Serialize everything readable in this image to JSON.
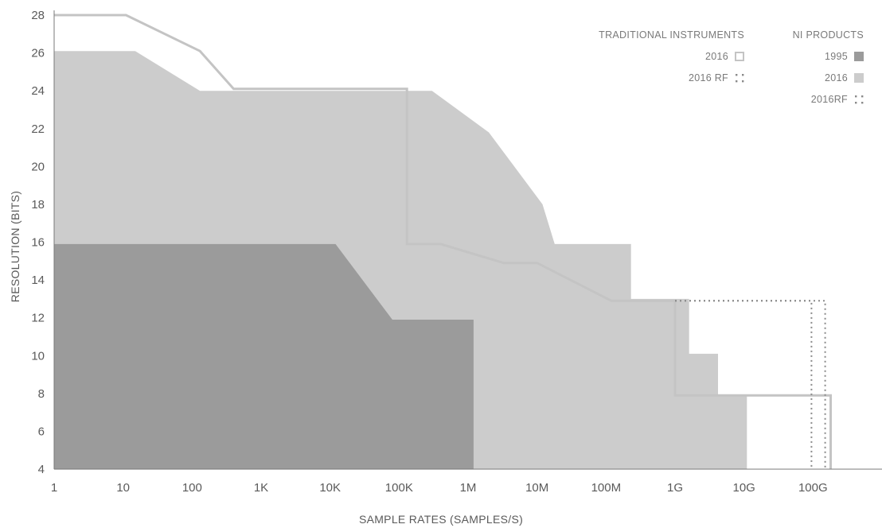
{
  "chart_data": {
    "type": "area",
    "xlabel": "SAMPLE RATES (SAMPLES/S)",
    "ylabel": "RESOLUTION (BITS)",
    "x_scale": "log10",
    "xlim": [
      1,
      1000000000000
    ],
    "ylim": [
      4,
      28
    ],
    "x_ticks": [
      {
        "value": 1,
        "label": "1"
      },
      {
        "value": 10,
        "label": "10"
      },
      {
        "value": 100,
        "label": "100"
      },
      {
        "value": 1000,
        "label": "1K"
      },
      {
        "value": 10000,
        "label": "10K"
      },
      {
        "value": 100000,
        "label": "100K"
      },
      {
        "value": 1000000,
        "label": "1M"
      },
      {
        "value": 10000000,
        "label": "10M"
      },
      {
        "value": 100000000,
        "label": "100M"
      },
      {
        "value": 1000000000,
        "label": "1G"
      },
      {
        "value": 10000000000,
        "label": "10G"
      },
      {
        "value": 100000000000,
        "label": "100G"
      }
    ],
    "y_ticks": [
      4,
      6,
      8,
      10,
      12,
      14,
      16,
      18,
      20,
      22,
      24,
      26,
      28
    ],
    "grid": false,
    "legend": {
      "placement": "top-right",
      "groups": [
        {
          "title": "TRADITIONAL INSTRUMENTS",
          "items": [
            {
              "label": "2016",
              "series": "trad_2016"
            },
            {
              "label": "2016 RF",
              "series": "trad_2016_rf"
            }
          ]
        },
        {
          "title": "NI PRODUCTS",
          "items": [
            {
              "label": "1995",
              "series": "ni_1995"
            },
            {
              "label": "2016",
              "series": "ni_2016"
            },
            {
              "label": "2016RF",
              "series": "ni_2016_rf"
            }
          ]
        }
      ]
    },
    "series": [
      {
        "id": "ni_2016",
        "style": "filled-area",
        "color": "#cccccc",
        "x": [
          1,
          15,
          130,
          300000,
          2000000,
          12000000,
          18000000,
          230000000,
          230000000,
          1600000000,
          1600000000,
          4200000000,
          4200000000,
          11000000000,
          11000000000
        ],
        "y": [
          26.1,
          26.1,
          24,
          24,
          21.8,
          18,
          15.9,
          15.9,
          13,
          13,
          10.1,
          10.1,
          7.9,
          7.9,
          4
        ]
      },
      {
        "id": "ni_1995",
        "style": "filled-area",
        "color": "#9b9b9b",
        "x": [
          1,
          12000,
          80000,
          1200000,
          1200000
        ],
        "y": [
          15.9,
          15.9,
          11.9,
          11.9,
          4
        ]
      },
      {
        "id": "trad_2016",
        "style": "outline",
        "color": "#c4c4c4",
        "x": [
          1,
          11,
          130,
          400,
          130000,
          130000,
          400000,
          3300000,
          10000000,
          120000000,
          1000000000,
          1000000000,
          180000000000,
          180000000000
        ],
        "y": [
          28,
          28,
          26.1,
          24.1,
          24.1,
          15.9,
          15.9,
          14.9,
          14.9,
          12.9,
          12.9,
          7.9,
          7.9,
          4
        ]
      },
      {
        "id": "trad_2016_rf",
        "style": "dotted-outline",
        "color": "#8a8a8a",
        "x": [
          1000000000,
          150000000000,
          150000000000
        ],
        "y": [
          12.9,
          12.9,
          4
        ]
      },
      {
        "id": "ni_2016_rf",
        "style": "dotted-outline",
        "color": "#8a8a8a",
        "x": [
          1000000000,
          95000000000,
          95000000000
        ],
        "y": [
          12.9,
          12.9,
          4
        ]
      }
    ]
  },
  "colors": {
    "ni_1995": "#9b9b9b",
    "ni_2016": "#cccccc",
    "trad_outline": "#c4c4c4",
    "rf_dots": "#8a8a8a",
    "axis": "#7a7a7a",
    "text": "#5a5a5a"
  }
}
